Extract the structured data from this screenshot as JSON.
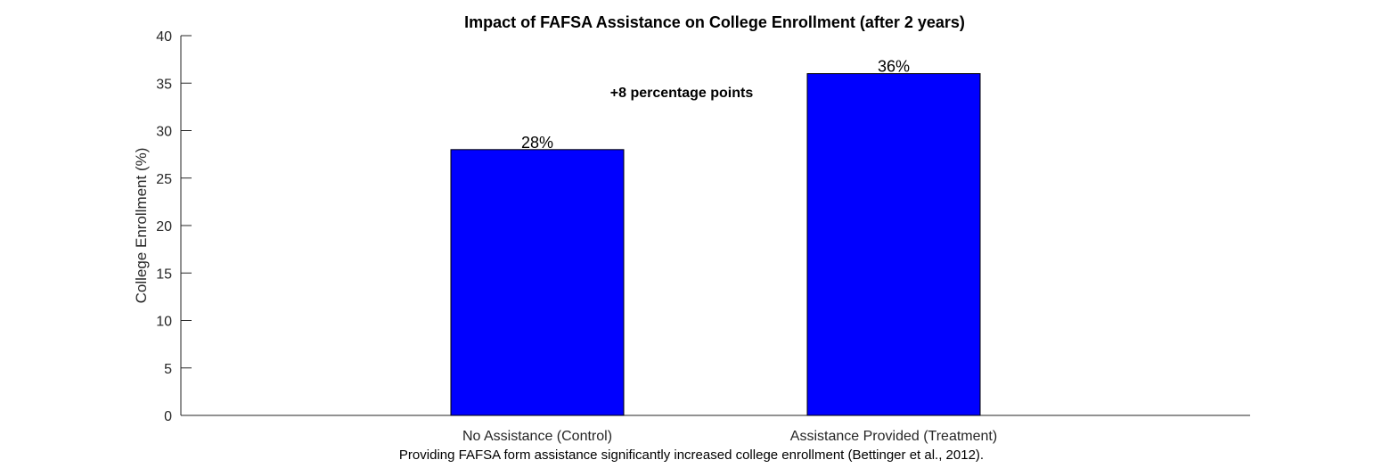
{
  "chart_data": {
    "type": "bar",
    "title": "Impact of FAFSA Assistance on College Enrollment (after 2 years)",
    "xlabel": "",
    "ylabel": "College Enrollment (%)",
    "ylim": [
      0,
      40
    ],
    "yticks": [
      0,
      5,
      10,
      15,
      20,
      25,
      30,
      35,
      40
    ],
    "categories": [
      "No Assistance (Control)",
      "Assistance Provided (Treatment)"
    ],
    "values": [
      28,
      36
    ],
    "data_labels": [
      "28%",
      "36%"
    ],
    "bar_color": "#0000FF",
    "annotation": "+8 percentage points",
    "caption": "Providing FAFSA form assistance significantly increased college enrollment (Bettinger et al., 2012).",
    "grid": false
  }
}
